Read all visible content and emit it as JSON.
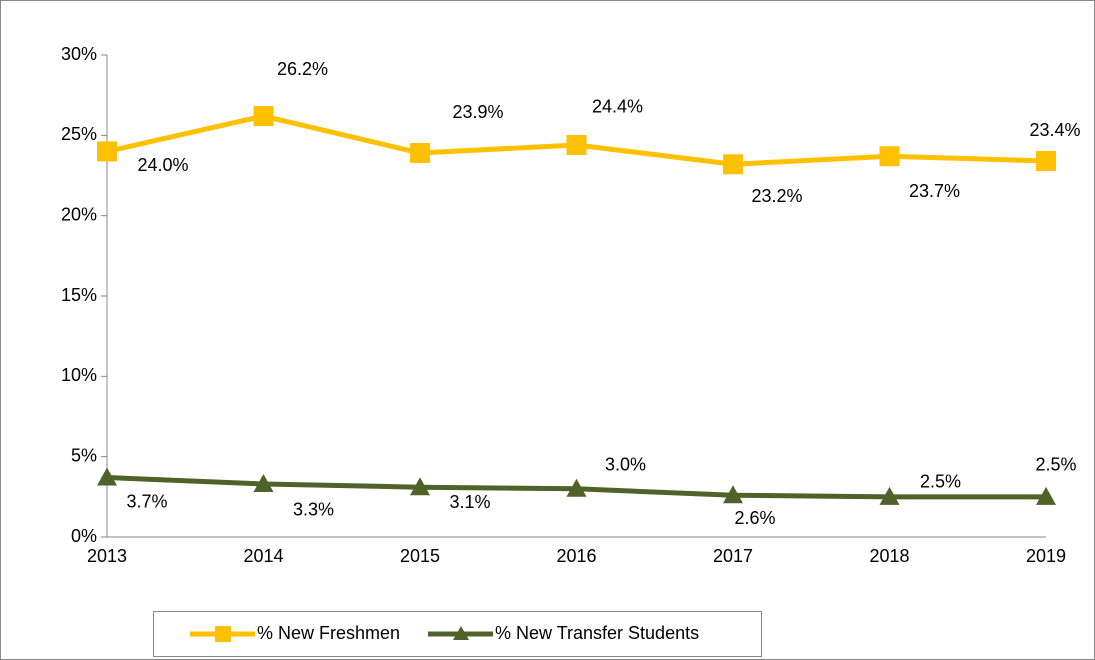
{
  "chart_data": {
    "type": "line",
    "categories": [
      "2013",
      "2014",
      "2015",
      "2016",
      "2017",
      "2018",
      "2019"
    ],
    "series": [
      {
        "name": "% New Freshmen",
        "color": "#ffc000",
        "marker": "square",
        "values": [
          24.0,
          26.2,
          23.9,
          24.4,
          23.2,
          23.7,
          23.4
        ],
        "value_labels": [
          "24.0%",
          "26.2%",
          "23.9%",
          "24.4%",
          "23.2%",
          "23.7%",
          "23.4%"
        ]
      },
      {
        "name": "% New Transfer Students",
        "color": "#4f6228",
        "marker": "triangle",
        "values": [
          3.7,
          3.3,
          3.1,
          3.0,
          2.6,
          2.5,
          2.5
        ],
        "value_labels": [
          "3.7%",
          "3.3%",
          "3.1%",
          "3.0%",
          "2.6%",
          "2.5%",
          "2.5%"
        ]
      }
    ],
    "ylim": [
      0,
      30
    ],
    "yticks": [
      {
        "value": 0,
        "label": "0%"
      },
      {
        "value": 5,
        "label": "5%"
      },
      {
        "value": 10,
        "label": "10%"
      },
      {
        "value": 15,
        "label": "15%"
      },
      {
        "value": 20,
        "label": "20%"
      },
      {
        "value": 25,
        "label": "25%"
      },
      {
        "value": 30,
        "label": "30%"
      }
    ],
    "grid": false,
    "legend": "bottom"
  }
}
